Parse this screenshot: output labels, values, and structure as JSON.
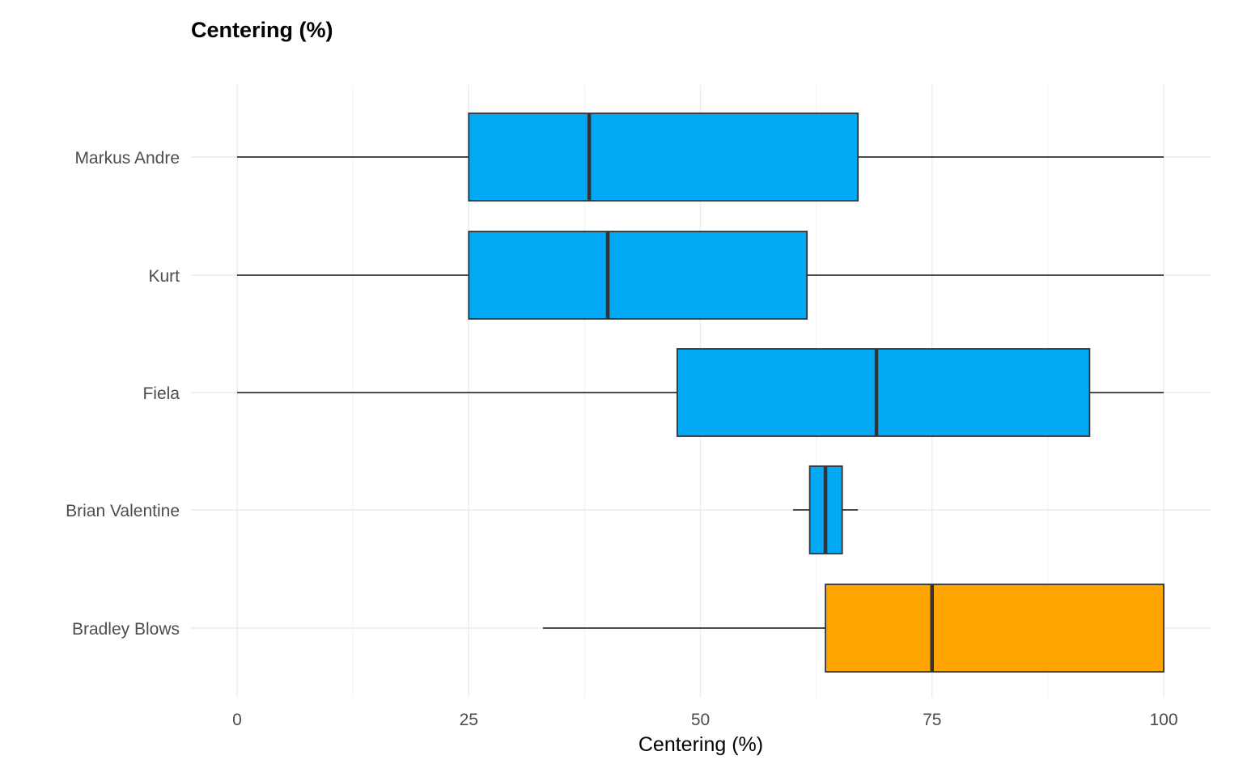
{
  "chart_data": {
    "type": "boxplot",
    "title": "Centering (%)",
    "xlabel": "Centering (%)",
    "ylabel": "",
    "xlim": [
      0,
      100
    ],
    "x_ticks": [
      0,
      25,
      50,
      75,
      100
    ],
    "grid": true,
    "orientation": "horizontal",
    "categories": [
      "Markus Andre",
      "Kurt",
      "Fiela",
      "Brian Valentine",
      "Bradley Blows"
    ],
    "boxes": [
      {
        "category": "Markus Andre",
        "min": 0,
        "q1": 25,
        "median": 38,
        "q3": 67,
        "max": 100,
        "color": "#03A9F4"
      },
      {
        "category": "Kurt",
        "min": 0,
        "q1": 25,
        "median": 40,
        "q3": 61.5,
        "max": 100,
        "color": "#03A9F4"
      },
      {
        "category": "Fiela",
        "min": 0,
        "q1": 47.5,
        "median": 69,
        "q3": 92,
        "max": 100,
        "color": "#03A9F4"
      },
      {
        "category": "Brian Valentine",
        "min": 60,
        "q1": 61.8,
        "median": 63.5,
        "q3": 65.3,
        "max": 67,
        "color": "#03A9F4"
      },
      {
        "category": "Bradley Blows",
        "min": 33,
        "q1": 63.5,
        "median": 75,
        "q3": 100,
        "max": 100,
        "color": "#FFA500"
      }
    ]
  }
}
